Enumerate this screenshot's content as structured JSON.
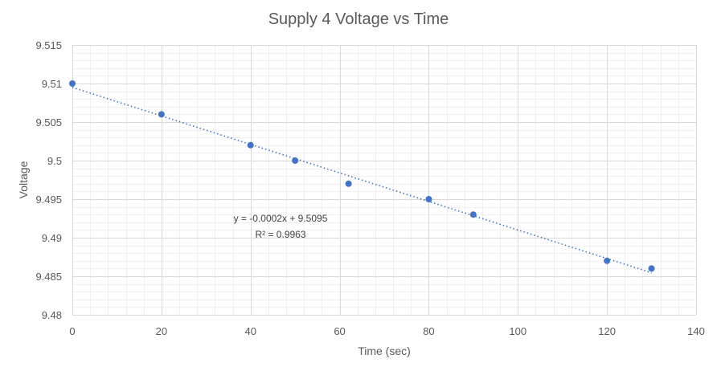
{
  "chart_data": {
    "type": "scatter",
    "title": "Supply 4 Voltage vs Time",
    "xlabel": "Time (sec)",
    "ylabel": "Voltage",
    "xlim": [
      0,
      140
    ],
    "ylim": [
      9.48,
      9.515
    ],
    "xticks": [
      0,
      20,
      40,
      60,
      80,
      100,
      120,
      140
    ],
    "yticks": [
      9.48,
      9.485,
      9.49,
      9.495,
      9.5,
      9.505,
      9.51,
      9.515
    ],
    "ytick_labels": [
      "9.48",
      "9.485",
      "9.49",
      "9.495",
      "9.5",
      "9.505",
      "9.51",
      "9.515"
    ],
    "grid": true,
    "minor_grid": true,
    "series": [
      {
        "name": "Supply 4",
        "color": "#4472c4",
        "x": [
          0,
          20,
          40,
          50,
          62,
          80,
          90,
          120,
          130
        ],
        "y": [
          9.51,
          9.506,
          9.502,
          9.5,
          9.497,
          9.495,
          9.493,
          9.487,
          9.486
        ]
      }
    ],
    "trendline": {
      "type": "linear",
      "slope": -0.000185,
      "intercept": 9.5095,
      "x_range": [
        0,
        130
      ],
      "equation": "y = -0.0002x + 9.5095",
      "r_squared": "R² = 0.9963"
    }
  }
}
